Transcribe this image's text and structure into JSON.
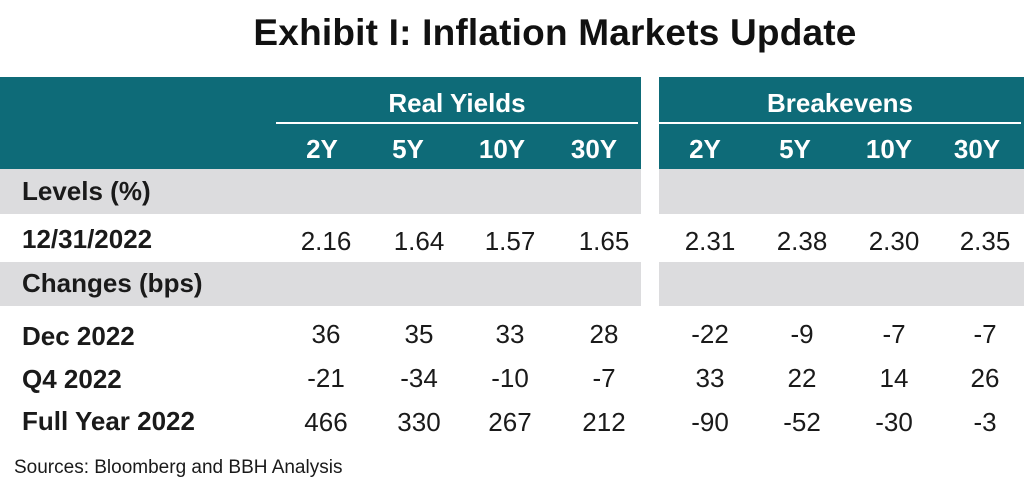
{
  "title": "Exhibit I: Inflation Markets Update",
  "groups": {
    "real_yields": "Real Yields",
    "breakevens": "Breakevens"
  },
  "columns": {
    "real_yields": [
      "2Y",
      "5Y",
      "10Y",
      "30Y"
    ],
    "breakevens": [
      "2Y",
      "5Y",
      "10Y",
      "30Y"
    ]
  },
  "sections": {
    "levels": "Levels (%)",
    "changes": "Changes (bps)"
  },
  "rows": [
    {
      "label": "12/31/2022",
      "real_yields": [
        "2.16",
        "1.64",
        "1.57",
        "1.65"
      ],
      "breakevens": [
        "2.31",
        "2.38",
        "2.30",
        "2.35"
      ]
    },
    {
      "label": "Dec 2022",
      "real_yields": [
        "36",
        "35",
        "33",
        "28"
      ],
      "breakevens": [
        "-22",
        "-9",
        "-7",
        "-7"
      ]
    },
    {
      "label": "Q4 2022",
      "real_yields": [
        "-21",
        "-34",
        "-10",
        "-7"
      ],
      "breakevens": [
        "33",
        "22",
        "14",
        "26"
      ]
    },
    {
      "label": "Full Year 2022",
      "real_yields": [
        "466",
        "330",
        "267",
        "212"
      ],
      "breakevens": [
        "-90",
        "-52",
        "-30",
        "-3"
      ]
    }
  ],
  "source": "Sources: Bloomberg and BBH Analysis",
  "colors": {
    "header_teal": "#0e6b78",
    "band_gray": "#dcdcde"
  }
}
